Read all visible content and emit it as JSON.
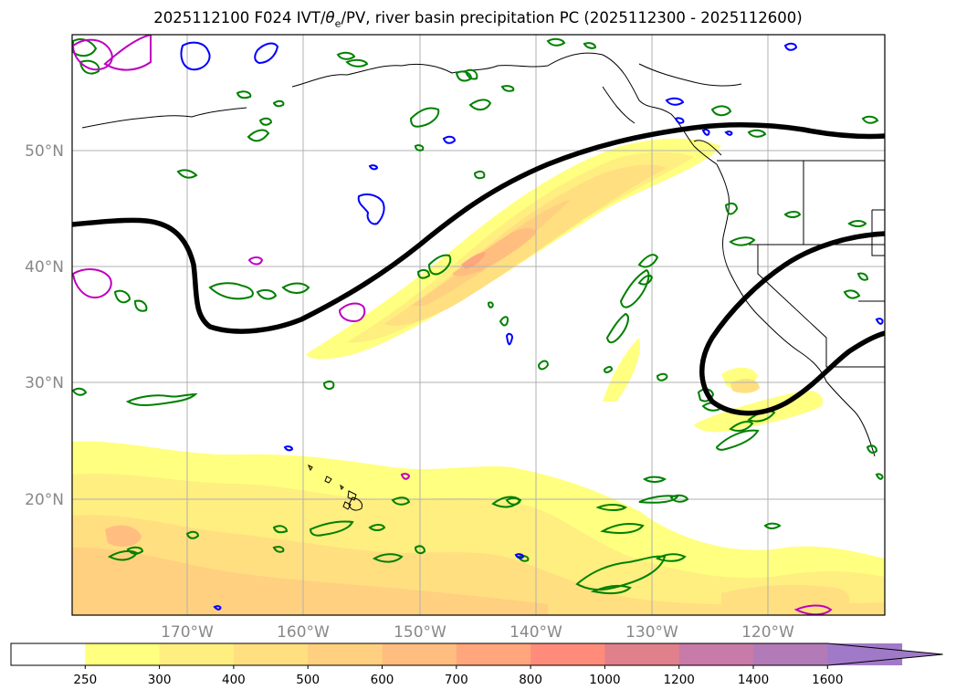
{
  "title": {
    "prefix": "2025112100 F024 IVT/",
    "theta": "θ",
    "theta_sub": "e",
    "suffix": "/PV, river basin precipitation PC (2025112300 - 2025112600)"
  },
  "map": {
    "lat_labels": [
      "20°N",
      "30°N",
      "40°N",
      "50°N"
    ],
    "lon_labels": [
      "170°W",
      "160°W",
      "150°W",
      "140°W",
      "130°W",
      "120°W"
    ],
    "lat_values": [
      20,
      30,
      40,
      50
    ],
    "lon_values": [
      -170,
      -160,
      -150,
      -140,
      -130,
      -120
    ],
    "contour_colors": {
      "theta_e": "#000000",
      "pv_positive": "#0000ff",
      "pv_negative": "#bf00bf",
      "precip": "#008000"
    }
  },
  "colorbar": {
    "levels": [
      "250",
      "300",
      "400",
      "500",
      "600",
      "700",
      "800",
      "1000",
      "1200",
      "1400",
      "1600"
    ],
    "colors": [
      "#ffffff",
      "#ffff80",
      "#ffee80",
      "#ffdf80",
      "#ffd080",
      "#ffbe80",
      "#ffa67d",
      "#ff8c7a",
      "#e0808a",
      "#c87aa8",
      "#b37ab8",
      "#a07ac8"
    ],
    "extend": "max"
  }
}
